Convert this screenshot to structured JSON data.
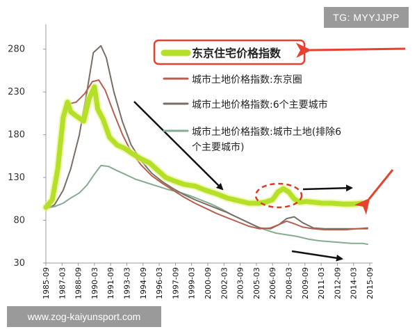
{
  "watermarks": {
    "top_right": "TG: MYYJJPP",
    "bottom_left": "www.zog-kaiyunsport.com"
  },
  "chart_data": {
    "type": "line",
    "ylim": [
      30,
      305
    ],
    "yticks": [
      30,
      80,
      130,
      180,
      230,
      280
    ],
    "xtick_labels": [
      "1985-09",
      "1987-03",
      "1988-09",
      "1990-03",
      "1991-09",
      "1993-03",
      "1994-09",
      "1996-03",
      "1997-09",
      "1999-03",
      "2000-09",
      "2002-03",
      "2003-09",
      "2005-03",
      "2006-09",
      "2008-03",
      "2009-09",
      "2011-03",
      "2012-09",
      "2014-03",
      "2015-09"
    ],
    "x_start": 1985.7,
    "x_end": 2015.7,
    "series": [
      {
        "name": "东京住宅价格指数",
        "color": "#b5e02a",
        "width": 7,
        "points": [
          [
            1985.7,
            95
          ],
          [
            1986.3,
            104
          ],
          [
            1986.8,
            140
          ],
          [
            1987.3,
            200
          ],
          [
            1987.7,
            218
          ],
          [
            1988.0,
            207
          ],
          [
            1988.5,
            202
          ],
          [
            1989.2,
            196
          ],
          [
            1989.7,
            222
          ],
          [
            1990.2,
            236
          ],
          [
            1990.5,
            210
          ],
          [
            1991.0,
            198
          ],
          [
            1991.6,
            177
          ],
          [
            1992.3,
            168
          ],
          [
            1993.0,
            164
          ],
          [
            1993.7,
            158
          ],
          [
            1994.5,
            152
          ],
          [
            1995.3,
            147
          ],
          [
            1996.0,
            139
          ],
          [
            1996.8,
            130
          ],
          [
            1997.6,
            126
          ],
          [
            1998.5,
            122
          ],
          [
            1999.5,
            120
          ],
          [
            2000.5,
            115
          ],
          [
            2001.5,
            111
          ],
          [
            2002.5,
            106
          ],
          [
            2003.5,
            103
          ],
          [
            2004.5,
            100
          ],
          [
            2005.3,
            100
          ],
          [
            2006.0,
            101
          ],
          [
            2006.7,
            104
          ],
          [
            2007.2,
            113
          ],
          [
            2007.7,
            117
          ],
          [
            2008.2,
            113
          ],
          [
            2008.7,
            105
          ],
          [
            2009.2,
            101
          ],
          [
            2009.8,
            102
          ],
          [
            2010.5,
            101
          ],
          [
            2011.3,
            100
          ],
          [
            2012.2,
            100
          ],
          [
            2013.2,
            99
          ],
          [
            2014.2,
            99
          ],
          [
            2015.0,
            100
          ]
        ]
      },
      {
        "name": "城市土地价格指数:东京圈",
        "color": "#b5604e",
        "width": 2,
        "points": [
          [
            1985.7,
            95
          ],
          [
            1986.3,
            105
          ],
          [
            1986.8,
            135
          ],
          [
            1987.3,
            208
          ],
          [
            1987.8,
            216
          ],
          [
            1988.5,
            218
          ],
          [
            1989.3,
            228
          ],
          [
            1990.0,
            242
          ],
          [
            1990.6,
            244
          ],
          [
            1991.2,
            232
          ],
          [
            1992.0,
            205
          ],
          [
            1992.8,
            180
          ],
          [
            1993.6,
            160
          ],
          [
            1994.5,
            145
          ],
          [
            1995.5,
            132
          ],
          [
            1996.5,
            123
          ],
          [
            1997.5,
            115
          ],
          [
            1998.5,
            107
          ],
          [
            1999.5,
            100
          ],
          [
            2000.5,
            94
          ],
          [
            2001.5,
            88
          ],
          [
            2002.5,
            83
          ],
          [
            2003.5,
            78
          ],
          [
            2004.5,
            73
          ],
          [
            2005.5,
            70
          ],
          [
            2006.5,
            71
          ],
          [
            2007.3,
            75
          ],
          [
            2008.0,
            79
          ],
          [
            2008.7,
            76
          ],
          [
            2009.5,
            72
          ],
          [
            2010.5,
            70
          ],
          [
            2011.5,
            69
          ],
          [
            2012.5,
            69
          ],
          [
            2013.5,
            69
          ],
          [
            2014.5,
            70
          ],
          [
            2015.5,
            70
          ]
        ]
      },
      {
        "name": "城市土地价格指数:6个主要城市",
        "color": "#786e66",
        "width": 2,
        "points": [
          [
            1985.7,
            94
          ],
          [
            1986.5,
            98
          ],
          [
            1987.3,
            115
          ],
          [
            1988.0,
            140
          ],
          [
            1988.8,
            180
          ],
          [
            1989.5,
            230
          ],
          [
            1990.1,
            276
          ],
          [
            1990.8,
            284
          ],
          [
            1991.3,
            270
          ],
          [
            1992.0,
            230
          ],
          [
            1992.8,
            195
          ],
          [
            1993.6,
            168
          ],
          [
            1994.5,
            150
          ],
          [
            1995.5,
            135
          ],
          [
            1996.5,
            125
          ],
          [
            1997.5,
            117
          ],
          [
            1998.5,
            110
          ],
          [
            1999.5,
            104
          ],
          [
            2000.5,
            99
          ],
          [
            2001.5,
            94
          ],
          [
            2002.5,
            89
          ],
          [
            2003.5,
            83
          ],
          [
            2004.5,
            77
          ],
          [
            2005.5,
            71
          ],
          [
            2006.5,
            70
          ],
          [
            2007.3,
            75
          ],
          [
            2008.0,
            82
          ],
          [
            2008.7,
            84
          ],
          [
            2009.5,
            77
          ],
          [
            2010.5,
            71
          ],
          [
            2011.5,
            70
          ],
          [
            2012.5,
            70
          ],
          [
            2013.5,
            70
          ],
          [
            2014.5,
            70
          ],
          [
            2015.5,
            71
          ]
        ]
      },
      {
        "name": "城市土地价格指数:城市土地(排除6个主要城市)",
        "color": "#86ab8e",
        "width": 2,
        "points": [
          [
            1985.7,
            94
          ],
          [
            1986.5,
            96
          ],
          [
            1987.3,
            100
          ],
          [
            1988.0,
            106
          ],
          [
            1988.8,
            112
          ],
          [
            1989.5,
            121
          ],
          [
            1990.2,
            134
          ],
          [
            1990.8,
            144
          ],
          [
            1991.5,
            143
          ],
          [
            1992.3,
            138
          ],
          [
            1993.0,
            134
          ],
          [
            1994.0,
            128
          ],
          [
            1995.0,
            124
          ],
          [
            1996.0,
            120
          ],
          [
            1997.0,
            116
          ],
          [
            1998.0,
            113
          ],
          [
            1999.0,
            109
          ],
          [
            2000.0,
            104
          ],
          [
            2001.0,
            99
          ],
          [
            2002.0,
            93
          ],
          [
            2003.0,
            86
          ],
          [
            2004.0,
            80
          ],
          [
            2005.0,
            74
          ],
          [
            2006.0,
            69
          ],
          [
            2007.0,
            65
          ],
          [
            2008.0,
            63
          ],
          [
            2009.0,
            61
          ],
          [
            2010.0,
            58
          ],
          [
            2011.0,
            56
          ],
          [
            2012.0,
            55
          ],
          [
            2013.0,
            54
          ],
          [
            2014.0,
            53
          ],
          [
            2015.0,
            53
          ],
          [
            2015.5,
            52
          ]
        ]
      }
    ]
  }
}
